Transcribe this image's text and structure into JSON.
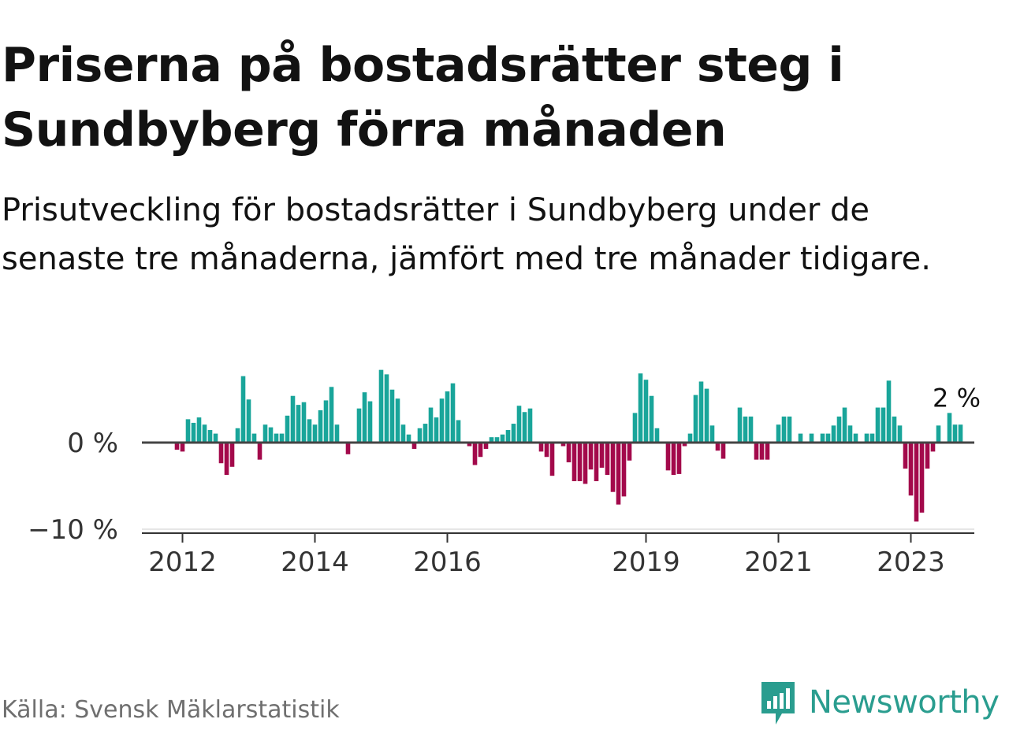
{
  "title": "Priserna på bostadsrätter steg i Sundbyberg förra månaden",
  "subtitle": "Prisutveckling för bostadsrätter i Sundbyberg under de senaste tre månaderna, jämfört med tre månader tidigare.",
  "source": "Källa: Svensk Mäklarstatistik",
  "brand": "Newsworthy",
  "colors": {
    "positive": "#19a59a",
    "negative": "#a3094b",
    "brand": "#2a9d8f"
  },
  "chart_data": {
    "type": "bar",
    "title": "Priserna på bostadsrätter steg i Sundbyberg förra månaden",
    "ylabel": "",
    "xlabel": "",
    "unit": "%",
    "ylim": [
      -10,
      9
    ],
    "start": "2011-12",
    "y_ticks": [
      {
        "value": 0,
        "label": "0 %"
      },
      {
        "value": -10,
        "label": "−10 %"
      }
    ],
    "x_ticks": [
      {
        "index": 1,
        "label": "2012"
      },
      {
        "index": 25,
        "label": "2014"
      },
      {
        "index": 49,
        "label": "2016"
      },
      {
        "index": 85,
        "label": "2019"
      },
      {
        "index": 109,
        "label": "2021"
      },
      {
        "index": 133,
        "label": "2023"
      }
    ],
    "values": [
      -0.8,
      -1.0,
      2.6,
      2.2,
      2.8,
      2.0,
      1.4,
      1.0,
      -2.3,
      -3.6,
      -2.7,
      1.6,
      7.4,
      4.8,
      1.0,
      -1.9,
      2.0,
      1.7,
      1.0,
      1.0,
      3.0,
      5.2,
      4.2,
      4.5,
      2.6,
      2.0,
      3.6,
      4.7,
      6.2,
      2.0,
      0.0,
      -1.3,
      0.0,
      3.8,
      5.6,
      4.6,
      0.0,
      8.1,
      7.6,
      5.9,
      4.9,
      2.0,
      0.9,
      -0.7,
      1.6,
      2.1,
      3.9,
      2.8,
      4.9,
      5.7,
      6.6,
      2.5,
      0.0,
      -0.4,
      -2.5,
      -1.6,
      -0.7,
      0.6,
      0.6,
      0.9,
      1.4,
      2.1,
      4.1,
      3.4,
      3.8,
      0.0,
      -1.0,
      -1.6,
      -3.7,
      0.0,
      -0.4,
      -2.2,
      -4.3,
      -4.3,
      -4.6,
      -3.0,
      -4.3,
      -2.8,
      -3.6,
      -5.5,
      -6.9,
      -6.0,
      -2.0,
      3.3,
      7.7,
      7.0,
      5.2,
      1.6,
      0.0,
      -3.1,
      -3.6,
      -3.5,
      -0.4,
      1.0,
      5.3,
      6.8,
      6.0,
      1.9,
      -0.9,
      -1.8,
      0.0,
      0.0,
      3.9,
      2.9,
      2.9,
      -1.9,
      -1.9,
      -1.9,
      0.0,
      2.0,
      2.9,
      2.9,
      0.0,
      1.0,
      0.0,
      1.0,
      0.0,
      1.0,
      1.0,
      1.9,
      2.9,
      3.9,
      1.9,
      1.0,
      0.0,
      1.0,
      1.0,
      3.9,
      3.9,
      6.9,
      2.9,
      1.9,
      -2.9,
      -5.9,
      -8.8,
      -7.8,
      -2.9,
      -1.0,
      1.9,
      0.0,
      3.3,
      2.0,
      2.0
    ],
    "last_value_label": "2 %"
  }
}
